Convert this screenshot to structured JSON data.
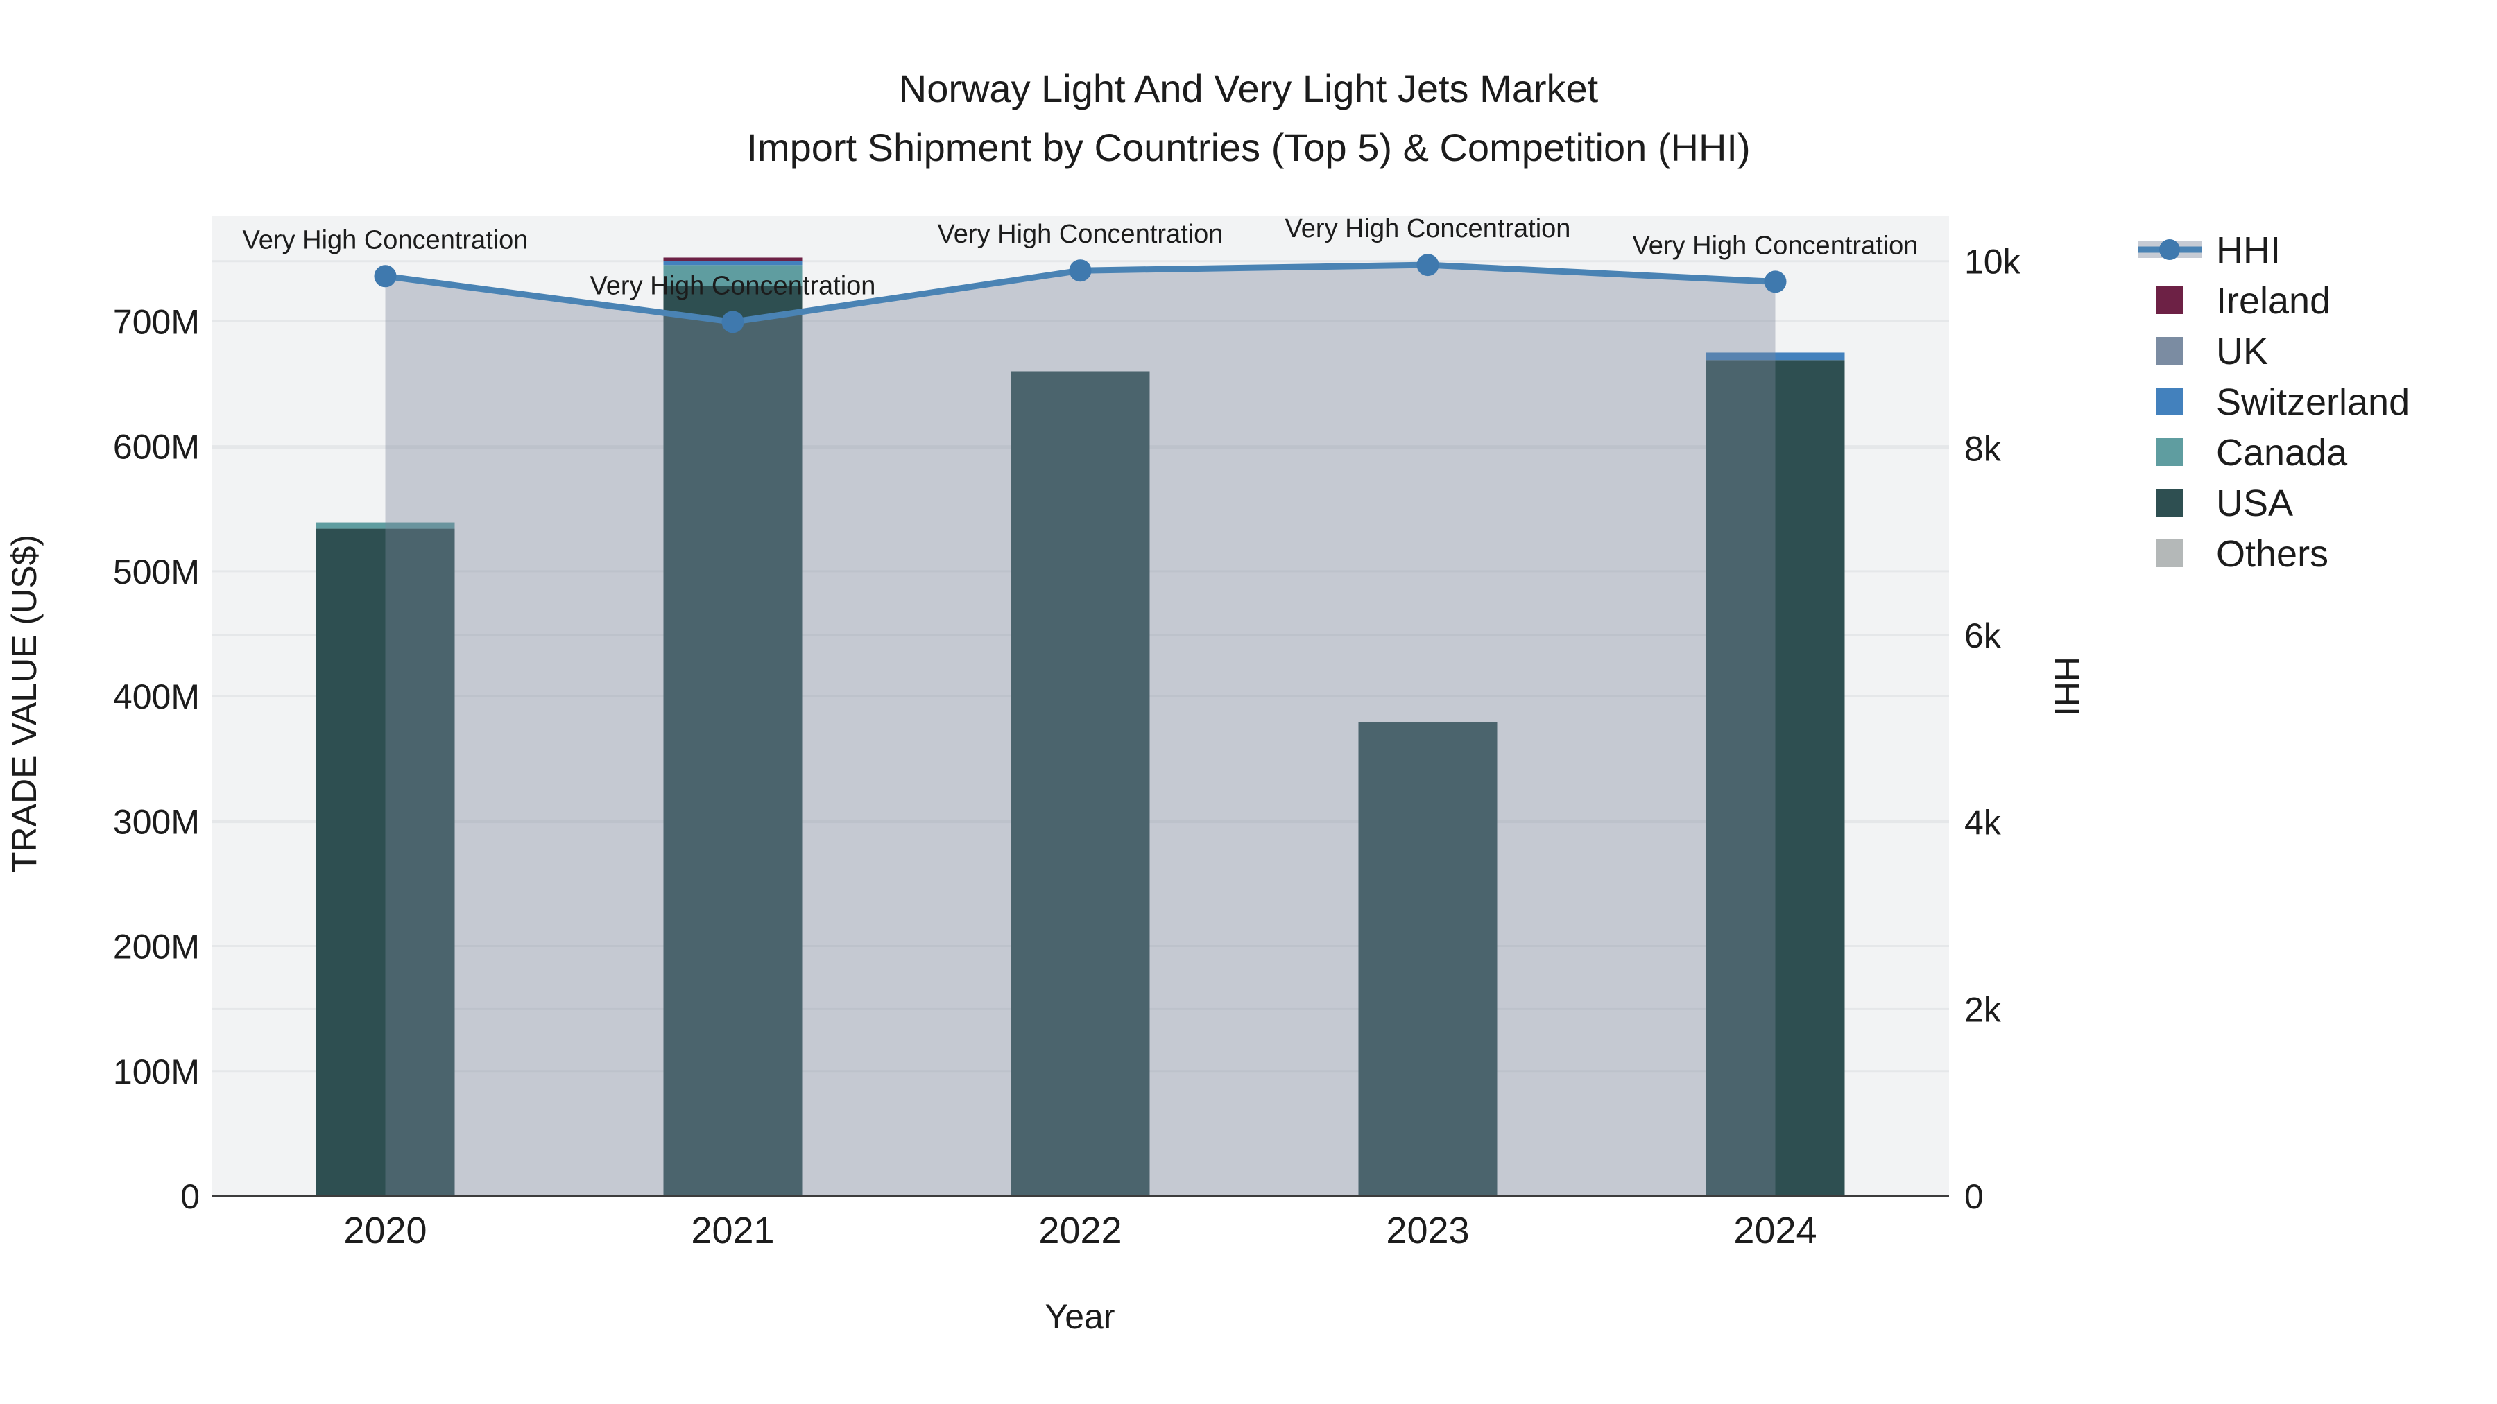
{
  "chart_data": {
    "type": "bar",
    "subtype": "stacked-bar-with-line-area-combo",
    "title_line1": "Norway Light And Very Light Jets Market",
    "title_line2": "Import Shipment by Countries (Top 5) & Competition (HHI)",
    "xlabel": "Year",
    "ylabel_left": "TRADE VALUE (US$)",
    "ylabel_right": "HHI",
    "categories": [
      "2020",
      "2021",
      "2022",
      "2023",
      "2024"
    ],
    "bar_value_unit": "millions of US$",
    "stack_order": [
      "Others",
      "USA",
      "Canada",
      "Switzerland",
      "UK",
      "Ireland"
    ],
    "series": [
      {
        "name": "Ireland",
        "color": "#6d2145",
        "values": [
          0,
          3,
          0,
          0,
          0
        ]
      },
      {
        "name": "UK",
        "color": "#7b8ca2",
        "values": [
          0,
          0,
          0,
          0,
          0
        ]
      },
      {
        "name": "Switzerland",
        "color": "#4381bd",
        "values": [
          0,
          3,
          0,
          0,
          6
        ]
      },
      {
        "name": "Canada",
        "color": "#5f9da0",
        "values": [
          5,
          17,
          0,
          0,
          0
        ]
      },
      {
        "name": "USA",
        "color": "#2e4f51",
        "values": [
          534,
          728,
          660,
          379,
          669
        ]
      },
      {
        "name": "Others",
        "color": "#b4b8b8",
        "values": [
          0,
          0,
          0,
          0,
          0
        ]
      }
    ],
    "line_series": {
      "name": "HHI",
      "values": [
        9840,
        9350,
        9900,
        9960,
        9780
      ],
      "color": "#4a83b4",
      "marker_color": "#3f79ae",
      "area_color": "rgba(124,134,156,0.38)",
      "legend_band_color": "#c6cbd4"
    },
    "annotations": [
      "Very High Concentration",
      "Very High Concentration",
      "Very High Concentration",
      "Very High Concentration",
      "Very High Concentration"
    ],
    "left_ticks": [
      {
        "label": "0",
        "value": 0
      },
      {
        "label": "100M",
        "value": 100
      },
      {
        "label": "200M",
        "value": 200
      },
      {
        "label": "300M",
        "value": 300
      },
      {
        "label": "400M",
        "value": 400
      },
      {
        "label": "500M",
        "value": 500
      },
      {
        "label": "600M",
        "value": 600
      },
      {
        "label": "700M",
        "value": 700
      }
    ],
    "right_ticks": [
      {
        "label": "0",
        "value": 0
      },
      {
        "label": "2k",
        "value": 2000
      },
      {
        "label": "4k",
        "value": 4000
      },
      {
        "label": "6k",
        "value": 6000
      },
      {
        "label": "8k",
        "value": 8000
      },
      {
        "label": "10k",
        "value": 10000
      }
    ],
    "ylim_left": [
      0,
      784
    ],
    "ylim_right": [
      0,
      10480
    ],
    "grid": true,
    "legend_position": "right",
    "colors": {
      "plot_bg": "#f2f3f4",
      "grid": "#e5e7e9",
      "axis_line": "#3c3c3c",
      "text": "#1c1c1c",
      "figure_bg": "#ffffff"
    }
  }
}
